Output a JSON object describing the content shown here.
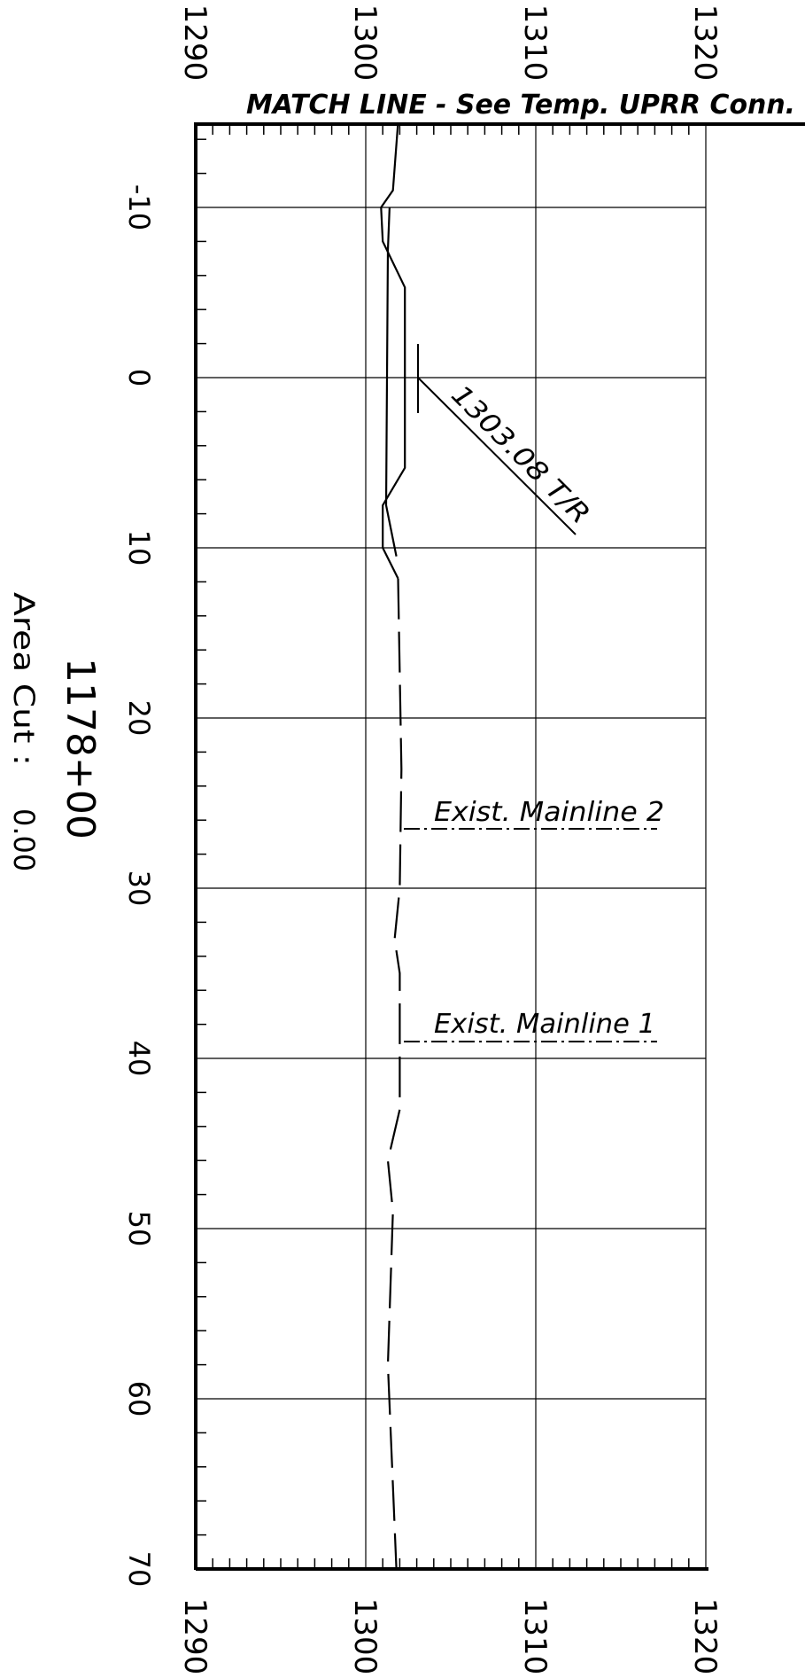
{
  "drawing": {
    "match_line": "MATCH LINE - See Temp. UPRR Conn.",
    "station": "1178+00",
    "area_cut_label": "Area Cut :",
    "area_cut_value": "0.00",
    "elevation_callout": "1303.08 T/R",
    "labels": {
      "mainline_2": "Exist. Mainline 2",
      "mainline_1": "Exist. Mainline 1"
    }
  },
  "chart_data": {
    "type": "line",
    "title": "",
    "elevation_axis": {
      "range": [
        1290,
        1320
      ],
      "ticks": [
        1290,
        1300,
        1310,
        1320
      ],
      "tick_labels": [
        "1290",
        "1300",
        "1310",
        "1320"
      ]
    },
    "offset_axis": {
      "range": [
        -15,
        70
      ],
      "ticks": [
        -10,
        0,
        10,
        20,
        30,
        40,
        50,
        60,
        70
      ],
      "tick_labels": [
        "-10",
        "0",
        "10",
        "20",
        "30",
        "40",
        "50",
        "60",
        "70"
      ]
    },
    "grid": true,
    "series": [
      {
        "style": "solid",
        "points": [
          {
            "offset": -15,
            "elev": 1301.9
          },
          {
            "offset": -11,
            "elev": 1301.6
          },
          {
            "offset": -10,
            "elev": 1300.9
          },
          {
            "offset": -8,
            "elev": 1301.0
          },
          {
            "offset": -5.3,
            "elev": 1302.3
          },
          {
            "offset": 5.3,
            "elev": 1302.3
          },
          {
            "offset": 7.5,
            "elev": 1301.0
          },
          {
            "offset": 10,
            "elev": 1301.0
          },
          {
            "offset": 11.8,
            "elev": 1301.9
          }
        ]
      },
      {
        "style": "solid",
        "points": [
          {
            "offset": -10,
            "elev": 1301.4
          },
          {
            "offset": -7.5,
            "elev": 1301.3
          },
          {
            "offset": 7.5,
            "elev": 1301.2
          },
          {
            "offset": 10.5,
            "elev": 1301.8
          }
        ]
      },
      {
        "style": "dashed",
        "points": [
          {
            "offset": 11.8,
            "elev": 1301.9
          },
          {
            "offset": 23,
            "elev": 1302.1
          },
          {
            "offset": 30,
            "elev": 1302.0
          },
          {
            "offset": 33,
            "elev": 1301.7
          },
          {
            "offset": 35,
            "elev": 1302.0
          },
          {
            "offset": 43,
            "elev": 1302.0
          },
          {
            "offset": 46,
            "elev": 1301.3
          },
          {
            "offset": 49,
            "elev": 1301.6
          },
          {
            "offset": 58,
            "elev": 1301.3
          },
          {
            "offset": 70,
            "elev": 1301.8
          }
        ]
      }
    ],
    "annotations": [
      {
        "text": "1303.08 T/R",
        "offset": 0,
        "elev": 1303.08
      },
      {
        "text": "Exist. Mainline 2",
        "offset": 26.5,
        "elev": 1302.1
      },
      {
        "text": "Exist. Mainline 1",
        "offset": 39,
        "elev": 1302.0
      }
    ]
  }
}
